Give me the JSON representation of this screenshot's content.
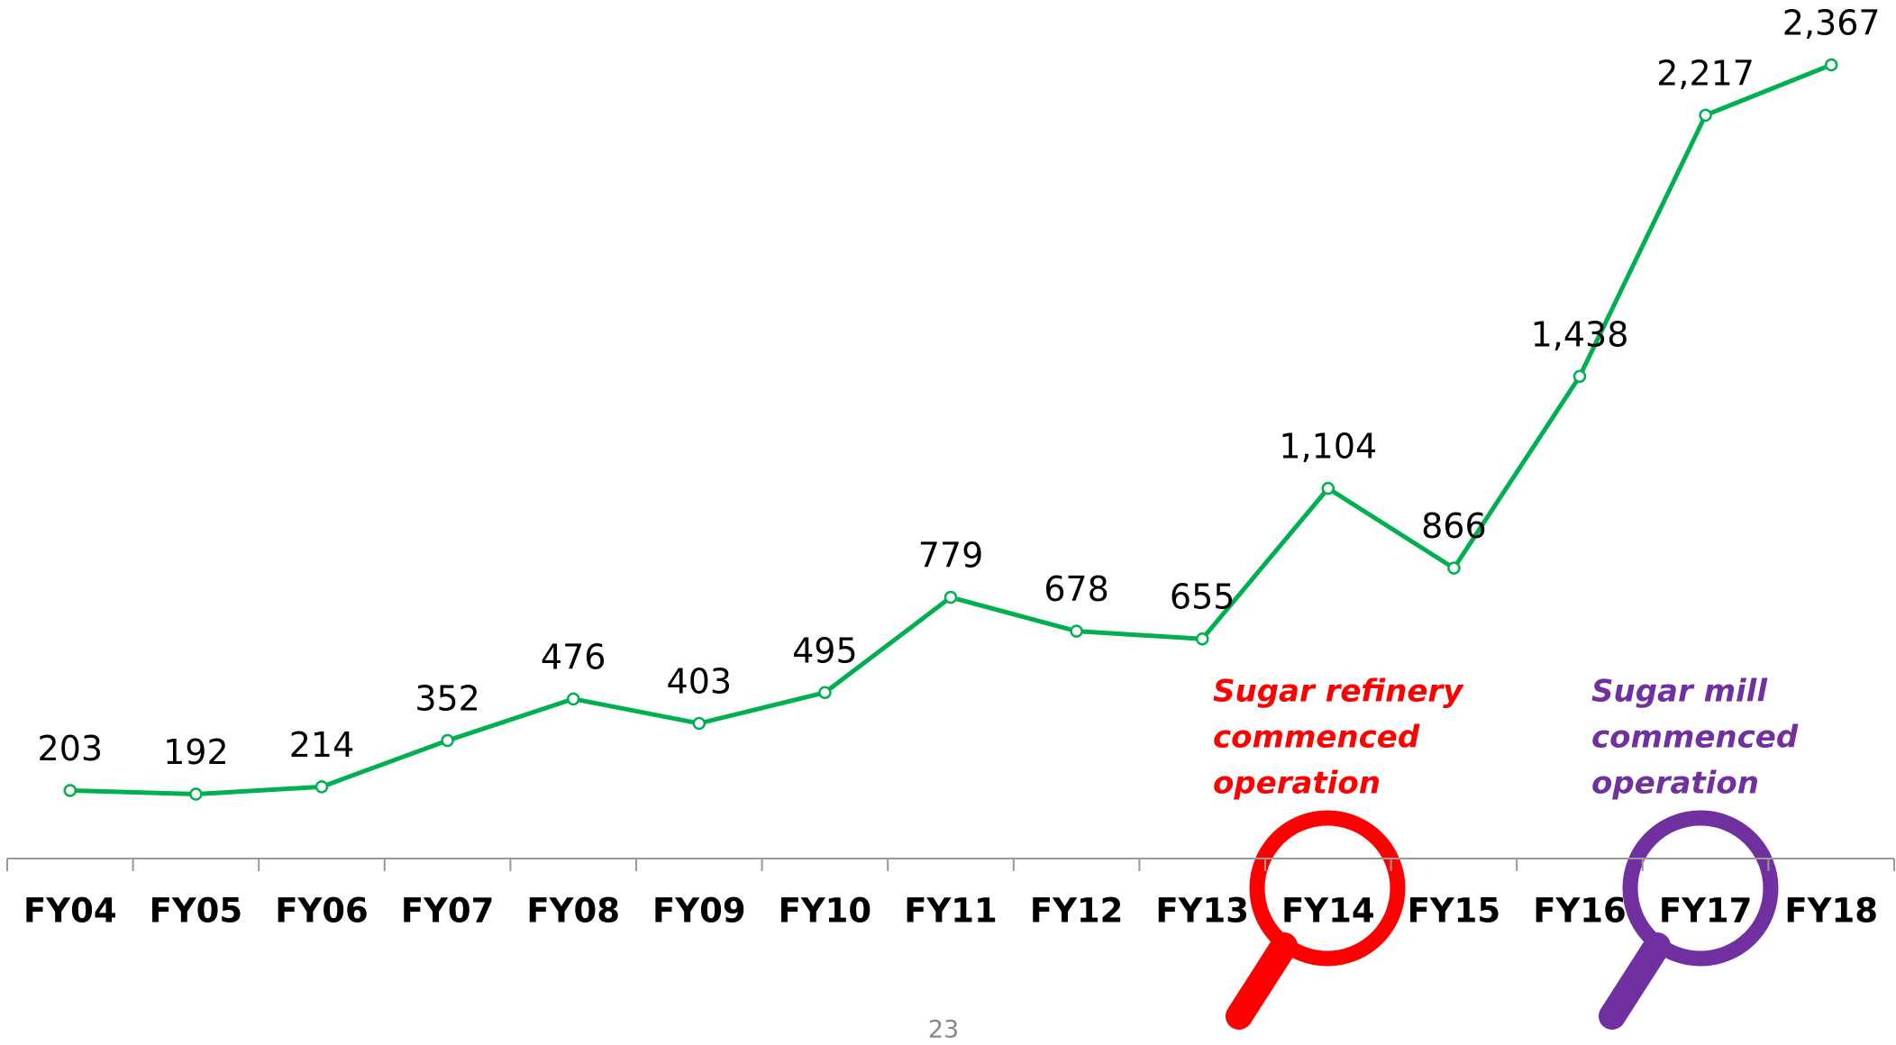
{
  "chart_data": {
    "type": "line",
    "categories": [
      "FY04",
      "FY05",
      "FY06",
      "FY07",
      "FY08",
      "FY09",
      "FY10",
      "FY11",
      "FY12",
      "FY13",
      "FY14",
      "FY15",
      "FY16",
      "FY17",
      "FY18"
    ],
    "series": [
      {
        "color": "#00b050",
        "values": [
          203,
          192,
          214,
          352,
          476,
          403,
          495,
          779,
          678,
          655,
          1104,
          866,
          1438,
          2217,
          2367
        ],
        "value_labels": [
          "203",
          "192",
          "214",
          "352",
          "476",
          "403",
          "495",
          "779",
          "678",
          "655",
          "1,104",
          "866",
          "1,438",
          "2,217",
          "2,367"
        ]
      }
    ],
    "annotations": [
      {
        "lines": [
          "Sugar refinery",
          "commenced",
          "operation"
        ],
        "color": "#ff0000"
      },
      {
        "lines": [
          "Sugar mill",
          "commenced",
          "operation"
        ],
        "color": "#7030a0"
      }
    ]
  },
  "page_number": "23"
}
